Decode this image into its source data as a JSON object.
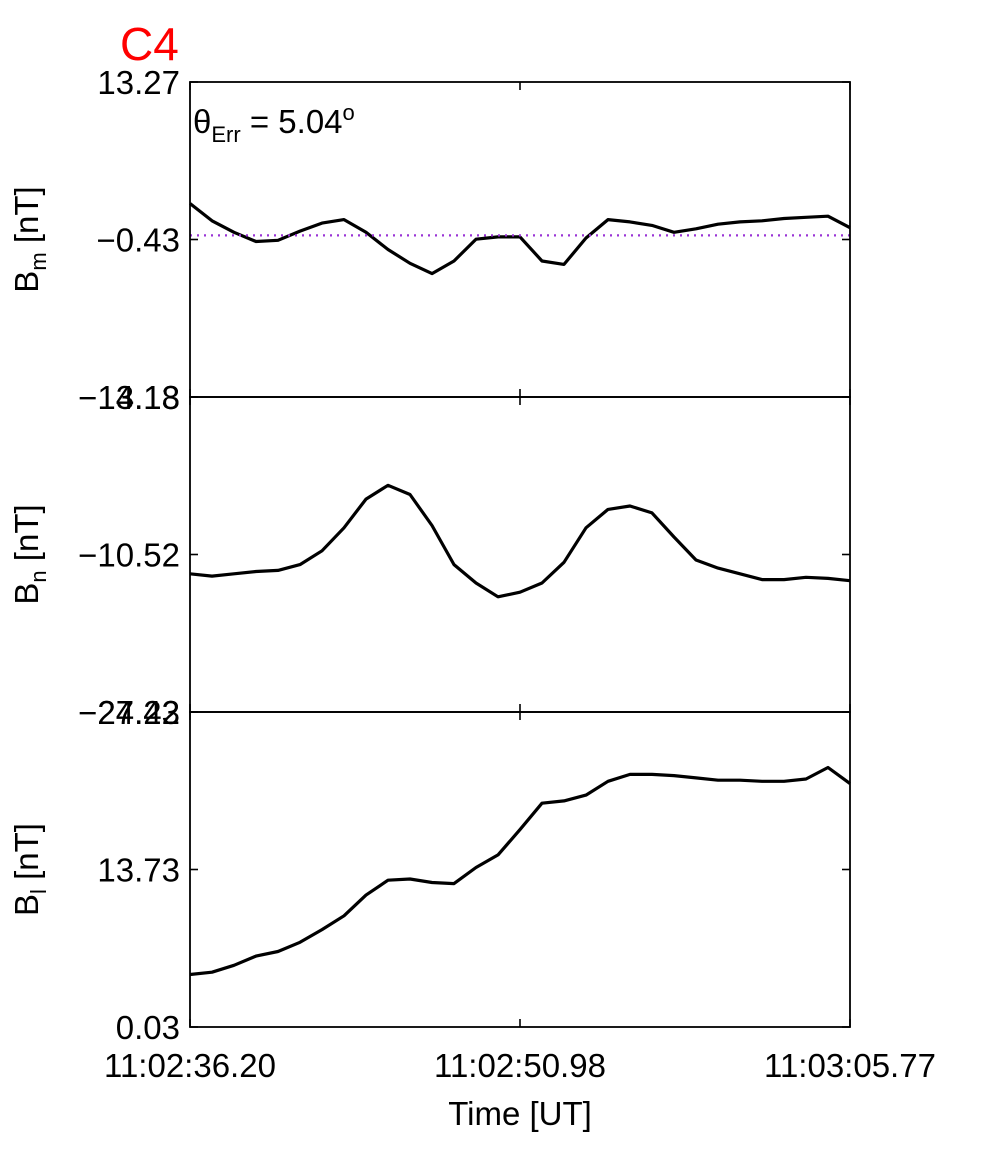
{
  "title": {
    "text": "C4",
    "color": "#ff0000"
  },
  "annotation": {
    "symbol": "θ",
    "sub": "Err",
    "eq": " =  5.04",
    "sup": "o"
  },
  "x_axis": {
    "label": "Time [UT]",
    "tick_labels": [
      "11:02:36.20",
      "11:02:50.98",
      "11:03:05.77"
    ]
  },
  "colors": {
    "line": "#000000",
    "reference": "#9a34d6",
    "title": "#ff0000"
  },
  "chart_data": [
    {
      "type": "line",
      "panel": "Bm",
      "ylabel": {
        "main": "B",
        "sub": "m",
        "unit": "[nT]"
      },
      "ylim": [
        -14.13,
        13.27
      ],
      "yticks": [
        "13.27",
        "-0.43",
        "-14.13"
      ],
      "reference_line": {
        "y": -0.07,
        "style": "dotted",
        "color": "#9a34d6"
      },
      "x": [
        0,
        1,
        2,
        3,
        4,
        5,
        6,
        7,
        8,
        9,
        10,
        11,
        12,
        13,
        14,
        15,
        16,
        17,
        18,
        19,
        20,
        21,
        22,
        23,
        24,
        25,
        26,
        27,
        28,
        29,
        30
      ],
      "series": [
        {
          "values": [
            2.7,
            1.2,
            0.2,
            -0.6,
            -0.5,
            0.3,
            1.0,
            1.3,
            0.2,
            -1.3,
            -2.5,
            -3.4,
            -2.3,
            -0.4,
            -0.2,
            -0.2,
            -2.3,
            -2.6,
            -0.3,
            1.3,
            1.1,
            0.8,
            0.2,
            0.5,
            0.9,
            1.1,
            1.2,
            1.4,
            1.5,
            1.6,
            0.6
          ]
        }
      ]
    },
    {
      "type": "line",
      "panel": "Bn",
      "ylabel": {
        "main": "B",
        "sub": "n",
        "unit": "[nT]"
      },
      "ylim": [
        -24.22,
        3.18
      ],
      "yticks": [
        "3.18",
        "-10.52",
        "-24.22"
      ],
      "x": [
        0,
        1,
        2,
        3,
        4,
        5,
        6,
        7,
        8,
        9,
        10,
        11,
        12,
        13,
        14,
        15,
        16,
        17,
        18,
        19,
        20,
        21,
        22,
        23,
        24,
        25,
        26,
        27,
        28,
        29,
        30
      ],
      "series": [
        {
          "values": [
            -12.2,
            -12.4,
            -12.2,
            -12.0,
            -11.9,
            -11.4,
            -10.2,
            -8.2,
            -5.7,
            -4.5,
            -5.3,
            -8.0,
            -11.4,
            -13.0,
            -14.2,
            -13.8,
            -13.0,
            -11.2,
            -8.2,
            -6.6,
            -6.3,
            -6.9,
            -9.0,
            -11.0,
            -11.7,
            -12.2,
            -12.7,
            -12.7,
            -12.5,
            -12.6,
            -12.8
          ]
        }
      ]
    },
    {
      "type": "line",
      "panel": "Bl",
      "ylabel": {
        "main": "B",
        "sub": "l",
        "unit": "[nT]"
      },
      "ylim": [
        0.03,
        27.43
      ],
      "yticks": [
        "27.43",
        "13.73",
        "0.03"
      ],
      "x": [
        0,
        1,
        2,
        3,
        4,
        5,
        6,
        7,
        8,
        9,
        10,
        11,
        12,
        13,
        14,
        15,
        16,
        17,
        18,
        19,
        20,
        21,
        22,
        23,
        24,
        25,
        26,
        27,
        28,
        29,
        30
      ],
      "series": [
        {
          "values": [
            4.6,
            4.8,
            5.4,
            6.2,
            6.6,
            7.4,
            8.5,
            9.7,
            11.5,
            12.8,
            12.9,
            12.6,
            12.5,
            13.9,
            15.0,
            17.2,
            19.5,
            19.7,
            20.2,
            21.4,
            22.0,
            22.0,
            21.9,
            21.7,
            21.5,
            21.5,
            21.4,
            21.4,
            21.6,
            22.6,
            21.2
          ]
        }
      ]
    }
  ]
}
